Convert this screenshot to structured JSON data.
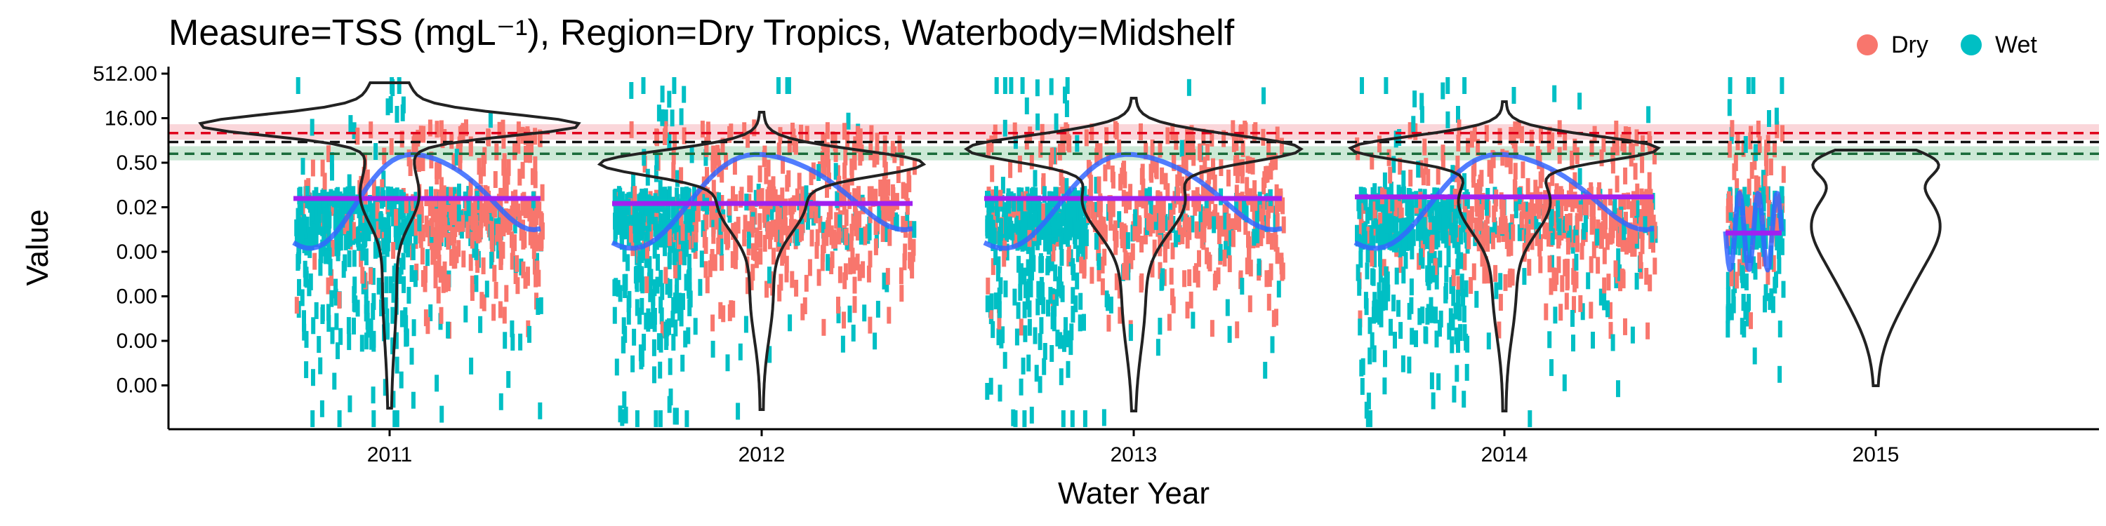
{
  "chart_data": {
    "type": "scatter",
    "title": "Measure=TSS (mgL⁻¹), Region=Dry Tropics, Waterbody=Midshelf",
    "xlabel": "Water Year",
    "ylabel": "Value",
    "x_categories": [
      "2011",
      "2012",
      "2013",
      "2014",
      "2015"
    ],
    "y_tick_labels": [
      "512.00",
      "16.00",
      "0.50",
      "0.02",
      "0.00",
      "0.00",
      "0.00",
      "0.00"
    ],
    "y_scale": "log2",
    "y_tick_values": [
      512,
      16,
      0.5,
      0.015625,
      0.00048828125,
      1.52587890625e-05,
      4.76837158203125e-07,
      1.4901161193847656e-08
    ],
    "grid": false,
    "legend": {
      "position": "top-right",
      "entries": [
        {
          "name": "Dry",
          "color": "#F8766D"
        },
        {
          "name": "Wet",
          "color": "#00BFC4"
        }
      ]
    },
    "guideline_values": [
      {
        "value": 5.0,
        "color": "#e0001b",
        "band": [
          3.0,
          10.0
        ]
      },
      {
        "value": 2.5,
        "color": "#111111",
        "band": null
      },
      {
        "value": 1.0,
        "color": "#1a6b3a",
        "band": [
          0.6,
          1.8
        ]
      }
    ],
    "medians": [
      {
        "year": "2011",
        "value": 0.031
      },
      {
        "year": "2012",
        "value": 0.021
      },
      {
        "year": "2013",
        "value": 0.031
      },
      {
        "year": "2014",
        "value": 0.035
      },
      {
        "year": "2015",
        "value": 0.0021
      }
    ],
    "series": [
      {
        "name": "Dry",
        "color": "#F8766D"
      },
      {
        "name": "Wet",
        "color": "#00BFC4"
      }
    ],
    "colors": {
      "dry": "#F8766D",
      "wet": "#00BFC4",
      "trend": "#3366FF",
      "median": "#A020F0",
      "violin": "#222222"
    }
  }
}
